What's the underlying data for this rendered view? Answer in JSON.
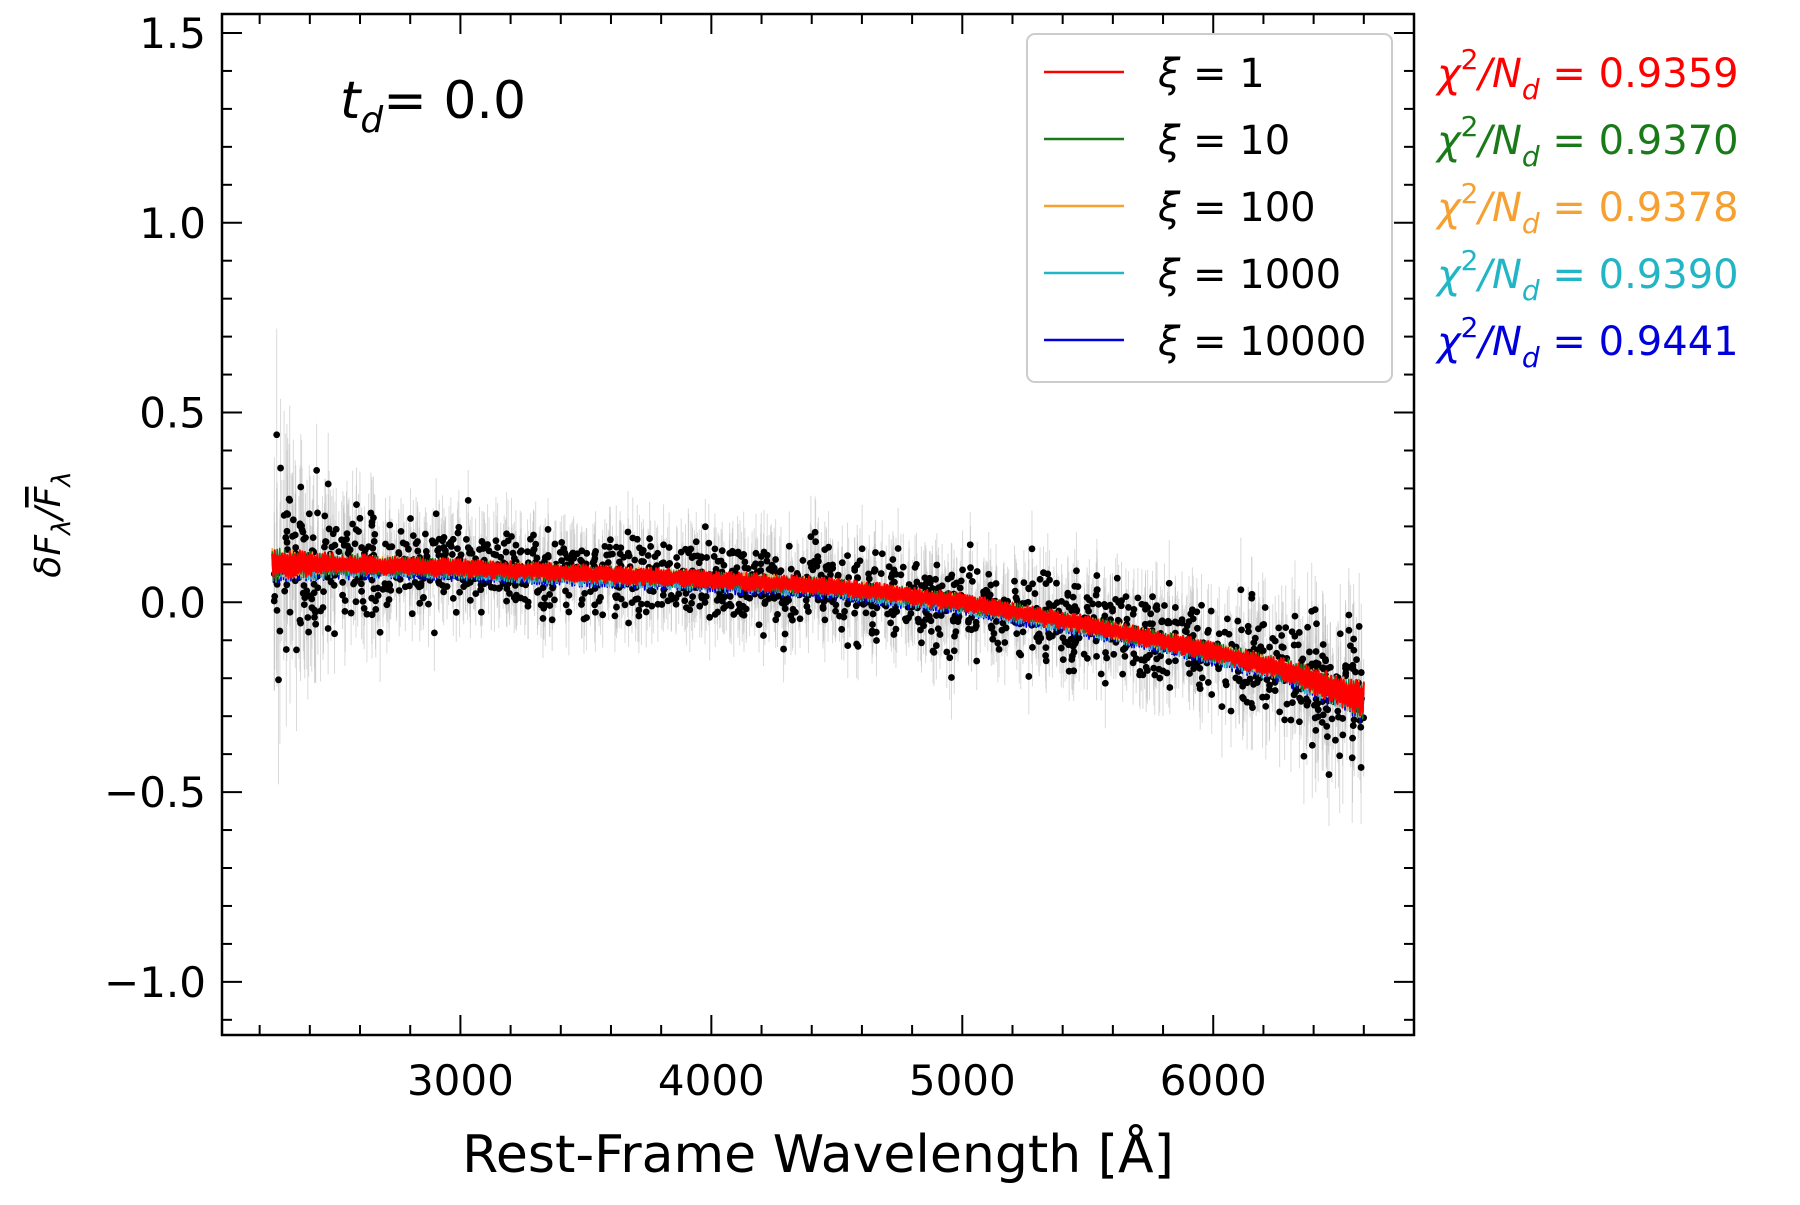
{
  "chart_data": {
    "type": "scatter",
    "xlabel": "Rest-Frame Wavelength [Å]",
    "ylabel": "δF_λ/F̄_λ",
    "xlim": [
      2050,
      6800
    ],
    "ylim": [
      -1.14,
      1.55
    ],
    "x_ticks": [
      3000,
      4000,
      5000,
      6000
    ],
    "x_tick_labels": [
      "3000",
      "4000",
      "5000",
      "6000"
    ],
    "y_ticks": [
      -1.0,
      -0.5,
      0.0,
      0.5,
      1.0,
      1.5
    ],
    "y_tick_labels": [
      "−1.0",
      "−0.5",
      "0.0",
      "0.5",
      "1.0",
      "1.5"
    ],
    "annotation": {
      "label": "t",
      "subscript": "d",
      "value_text": "=  0.0"
    },
    "data_points": {
      "color": "#000000",
      "errorbar_color": "#bbbbbb",
      "x_range": [
        2250,
        6600
      ],
      "trend_x": [
        2250,
        2600,
        3000,
        3500,
        4000,
        4500,
        5000,
        5500,
        6000,
        6300,
        6600
      ],
      "trend_y": [
        0.1,
        0.1,
        0.09,
        0.075,
        0.06,
        0.04,
        0.0,
        -0.06,
        -0.13,
        -0.18,
        -0.26
      ],
      "scatter_near_2250": 0.16,
      "scatter_typical": 0.055,
      "scatter_near_6600": 0.1
    },
    "grid": false,
    "legend_placement": "top-right",
    "series": [
      {
        "name": "ξ = 1",
        "xi": "1",
        "color": "#ff0000",
        "chi2_value": "0.9359"
      },
      {
        "name": "ξ = 10",
        "xi": "10",
        "color": "#1a7a1a",
        "chi2_value": "0.9370"
      },
      {
        "name": "ξ = 100",
        "xi": "100",
        "color": "#f5a030",
        "chi2_value": "0.9378"
      },
      {
        "name": "ξ = 1000",
        "xi": "1000",
        "color": "#22b5c5",
        "chi2_value": "0.9390"
      },
      {
        "name": "ξ = 10000",
        "xi": "10000",
        "color": "#0000dd",
        "chi2_value": "0.9441"
      }
    ],
    "chi2_label": {
      "chi": "χ",
      "exp": "2",
      "over": "/N",
      "sub": "d",
      "eq": " = "
    }
  }
}
